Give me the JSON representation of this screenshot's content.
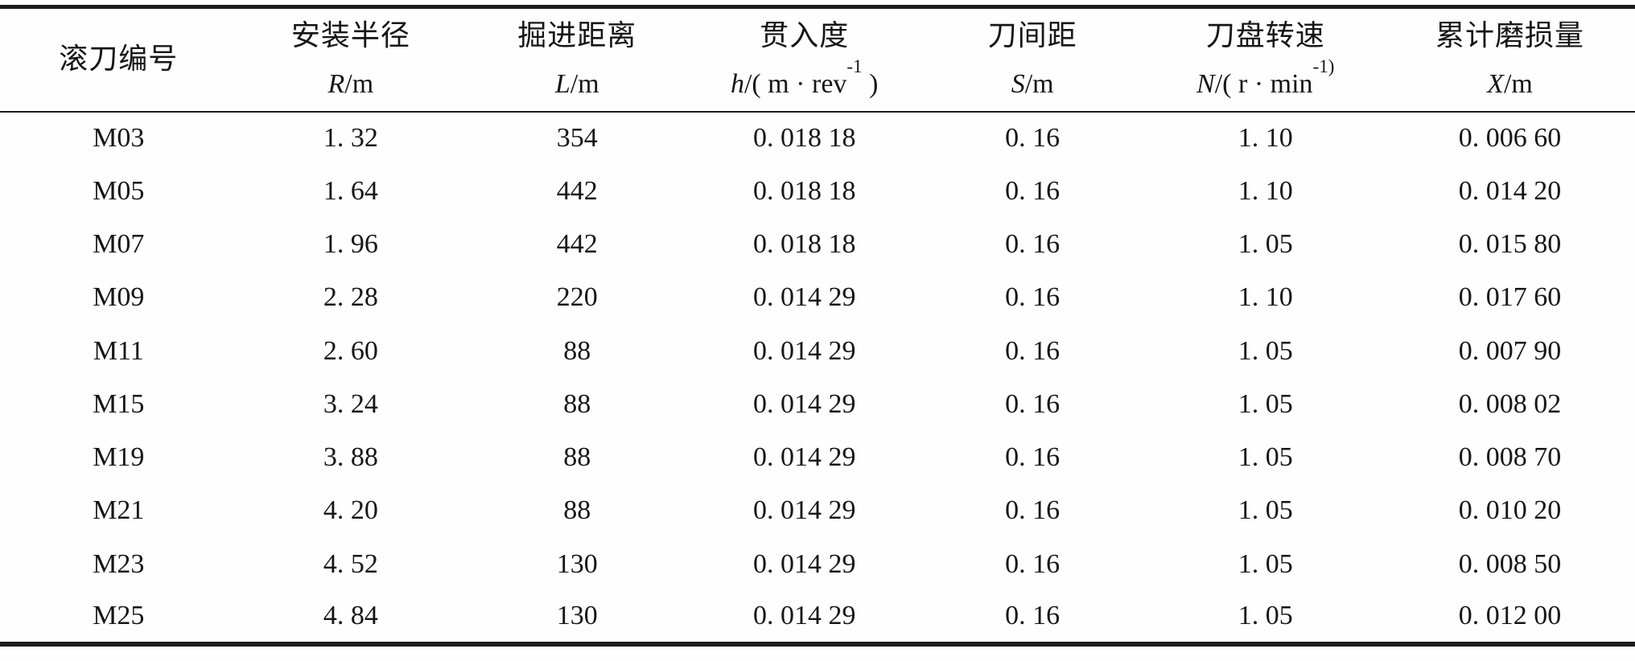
{
  "colors": {
    "rule": "#1d1d1d",
    "text": "#161616",
    "background": "#fefefe"
  },
  "table": {
    "columns": [
      {
        "key": "cutter-number",
        "title": "滚刀编号",
        "var": "",
        "unit_pre": "",
        "unit_sup": "",
        "unit_post": ""
      },
      {
        "key": "install-radius",
        "title": "安装半径",
        "var": "R",
        "unit_pre": "/m",
        "unit_sup": "",
        "unit_post": ""
      },
      {
        "key": "tunneling-distance",
        "title": "掘进距离",
        "var": "L",
        "unit_pre": "/m",
        "unit_sup": "",
        "unit_post": ""
      },
      {
        "key": "penetration",
        "title": "贯入度",
        "var": "h",
        "unit_pre": "/( m · rev",
        "unit_sup": "-1",
        "unit_post": " )"
      },
      {
        "key": "cutter-spacing",
        "title": "刀间距",
        "var": "S",
        "unit_pre": "/m",
        "unit_sup": "",
        "unit_post": ""
      },
      {
        "key": "cutterhead-speed",
        "title": "刀盘转速",
        "var": "N",
        "unit_pre": "/( r · min",
        "unit_sup": "-1)",
        "unit_post": ""
      },
      {
        "key": "cumulative-wear",
        "title": "累计磨损量",
        "var": "X",
        "unit_pre": "/m",
        "unit_sup": "",
        "unit_post": ""
      }
    ],
    "rows": [
      [
        "M03",
        "1. 32",
        "354",
        "0. 018 18",
        "0. 16",
        "1. 10",
        "0. 006 60"
      ],
      [
        "M05",
        "1. 64",
        "442",
        "0. 018 18",
        "0. 16",
        "1. 10",
        "0. 014 20"
      ],
      [
        "M07",
        "1. 96",
        "442",
        "0. 018 18",
        "0. 16",
        "1. 05",
        "0. 015 80"
      ],
      [
        "M09",
        "2. 28",
        "220",
        "0. 014 29",
        "0. 16",
        "1. 10",
        "0. 017 60"
      ],
      [
        "M11",
        "2. 60",
        "88",
        "0. 014 29",
        "0. 16",
        "1. 05",
        "0. 007 90"
      ],
      [
        "M15",
        "3. 24",
        "88",
        "0. 014 29",
        "0. 16",
        "1. 05",
        "0. 008 02"
      ],
      [
        "M19",
        "3. 88",
        "88",
        "0. 014 29",
        "0. 16",
        "1. 05",
        "0. 008 70"
      ],
      [
        "M21",
        "4. 20",
        "88",
        "0. 014 29",
        "0. 16",
        "1. 05",
        "0. 010 20"
      ],
      [
        "M23",
        "4. 52",
        "130",
        "0. 014 29",
        "0. 16",
        "1. 05",
        "0. 008 50"
      ],
      [
        "M25",
        "4. 84",
        "130",
        "0. 014 29",
        "0. 16",
        "1. 05",
        "0. 012 00"
      ]
    ]
  }
}
